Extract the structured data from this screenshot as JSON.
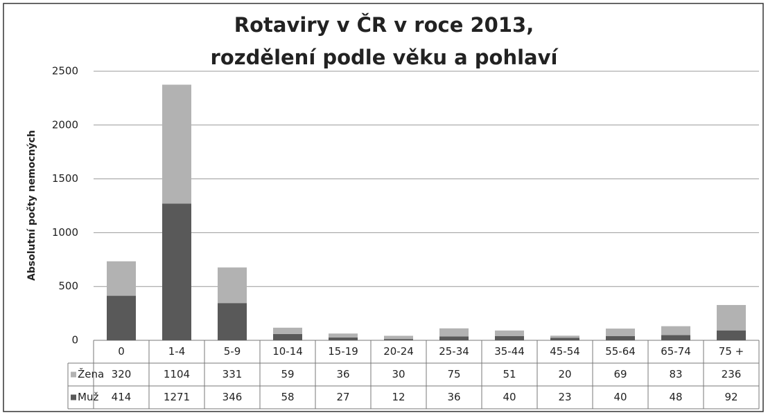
{
  "chart_data": {
    "type": "stacked_bar",
    "title": [
      "Rotaviry v ČR v roce 2013,",
      "rozdělení podle věku a pohlaví"
    ],
    "y_label": "Absolutní počty nemocných",
    "categories": [
      "0",
      "1-4",
      "5-9",
      "10-14",
      "15-19",
      "20-24",
      "25-34",
      "35-44",
      "45-54",
      "55-64",
      "65-74",
      "75 +"
    ],
    "series": [
      {
        "name": "Žena",
        "color": "#b2b2b2",
        "values": [
          320,
          1104,
          331,
          59,
          36,
          30,
          75,
          51,
          20,
          69,
          83,
          236
        ]
      },
      {
        "name": "Muž",
        "color": "#595959",
        "values": [
          414,
          1271,
          346,
          58,
          27,
          12,
          36,
          40,
          23,
          40,
          48,
          92
        ]
      }
    ],
    "ylim": [
      0,
      2500
    ],
    "yticks": [
      0,
      500,
      1000,
      1500,
      2000,
      2500
    ],
    "grid": true
  }
}
